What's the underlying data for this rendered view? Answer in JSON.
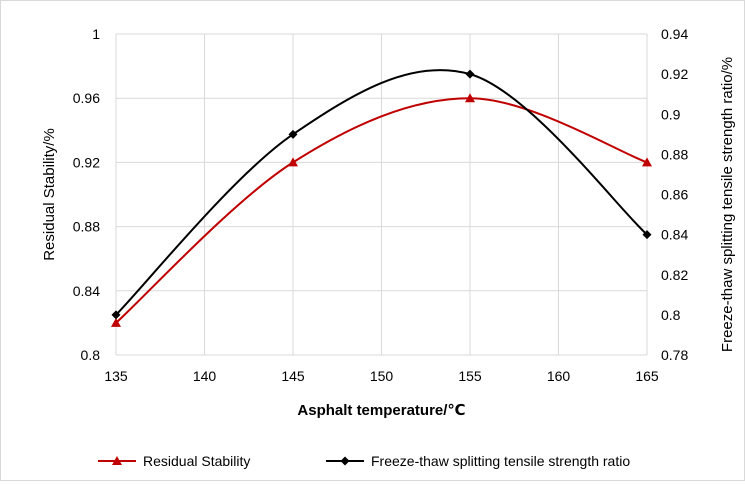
{
  "chart_data": {
    "type": "line",
    "x": [
      135,
      145,
      155,
      165
    ],
    "xlabel": "Asphalt temperature/℃",
    "ylabel": "Residual Stability/%",
    "y2label": "Freeze-thaw splitting tensile strength ratio/%",
    "xlim": [
      135,
      165
    ],
    "ylim": [
      0.8,
      1.0
    ],
    "y2lim": [
      0.78,
      0.94
    ],
    "x_ticks": [
      "135",
      "140",
      "145",
      "150",
      "155",
      "160",
      "165"
    ],
    "y_ticks": [
      "0.8",
      "0.84",
      "0.88",
      "0.92",
      "0.96",
      "1"
    ],
    "y2_ticks": [
      "0.78",
      "0.8",
      "0.82",
      "0.84",
      "0.86",
      "0.88",
      "0.9",
      "0.92",
      "0.94"
    ],
    "grid": true,
    "legend_position": "bottom",
    "series": [
      {
        "name": "Residual Stability",
        "axis": "left",
        "color": "#c00000",
        "marker": "triangle",
        "values": [
          0.82,
          0.92,
          0.96,
          0.92
        ]
      },
      {
        "name": "Freeze-thaw splitting tensile strength ratio",
        "axis": "right",
        "color": "#000000",
        "marker": "diamond",
        "values": [
          0.8,
          0.89,
          0.92,
          0.84
        ]
      }
    ]
  }
}
